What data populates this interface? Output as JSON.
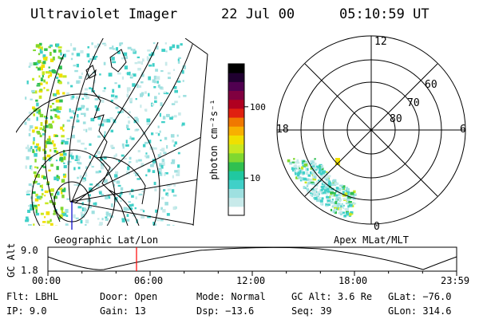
{
  "header": {
    "title": "Ultraviolet Imager",
    "date": "22 Jul 00",
    "time": "05:10:59 UT"
  },
  "left_panel": {
    "label": "Geographic Lat/Lon"
  },
  "right_panel": {
    "label": "Apex MLat/MLT",
    "mlt_labels": [
      "12",
      "18",
      "6",
      "0"
    ],
    "mlat_labels": [
      "60",
      "70",
      "80"
    ]
  },
  "colorbar": {
    "unit": "photon cm⁻²s⁻¹",
    "ticks": [
      {
        "label": "100",
        "value": 100
      },
      {
        "label": "10",
        "value": 10
      }
    ],
    "range": [
      3,
      400
    ],
    "colors": [
      "#ffffff",
      "#c8eaea",
      "#9ee0e0",
      "#40d0c8",
      "#20c8a0",
      "#30c050",
      "#80d830",
      "#c8e820",
      "#f0e000",
      "#f8b000",
      "#f07800",
      "#e02010",
      "#b00020",
      "#800040",
      "#500050",
      "#200030",
      "#000000"
    ]
  },
  "timeline": {
    "axis_label": "GC Alt",
    "y_ticks": [
      "9.0",
      "1.8"
    ],
    "x_ticks": [
      "00:00",
      "06:00",
      "12:00",
      "18:00",
      "23:59"
    ],
    "current_time": "05:10:59"
  },
  "status": {
    "filter": {
      "label": "Flt:",
      "value": "LBHL"
    },
    "ip": {
      "label": "IP:",
      "value": "9.0"
    },
    "door": {
      "label": "Door:",
      "value": "Open"
    },
    "gain": {
      "label": "Gain:",
      "value": "13"
    },
    "mode": {
      "label": "Mode:",
      "value": "Normal"
    },
    "dsp": {
      "label": "Dsp:",
      "value": "−13.6"
    },
    "gc_alt": {
      "label": "GC Alt:",
      "value": "3.6 Re"
    },
    "seq": {
      "label": "Seq:",
      "value": "39"
    },
    "glat": {
      "label": "GLat:",
      "value": "−76.0"
    },
    "glon": {
      "label": "GLon:",
      "value": "314.6"
    }
  },
  "colors": {
    "accent_red": "#ff0000",
    "nadir_blue": "#0000cc"
  }
}
